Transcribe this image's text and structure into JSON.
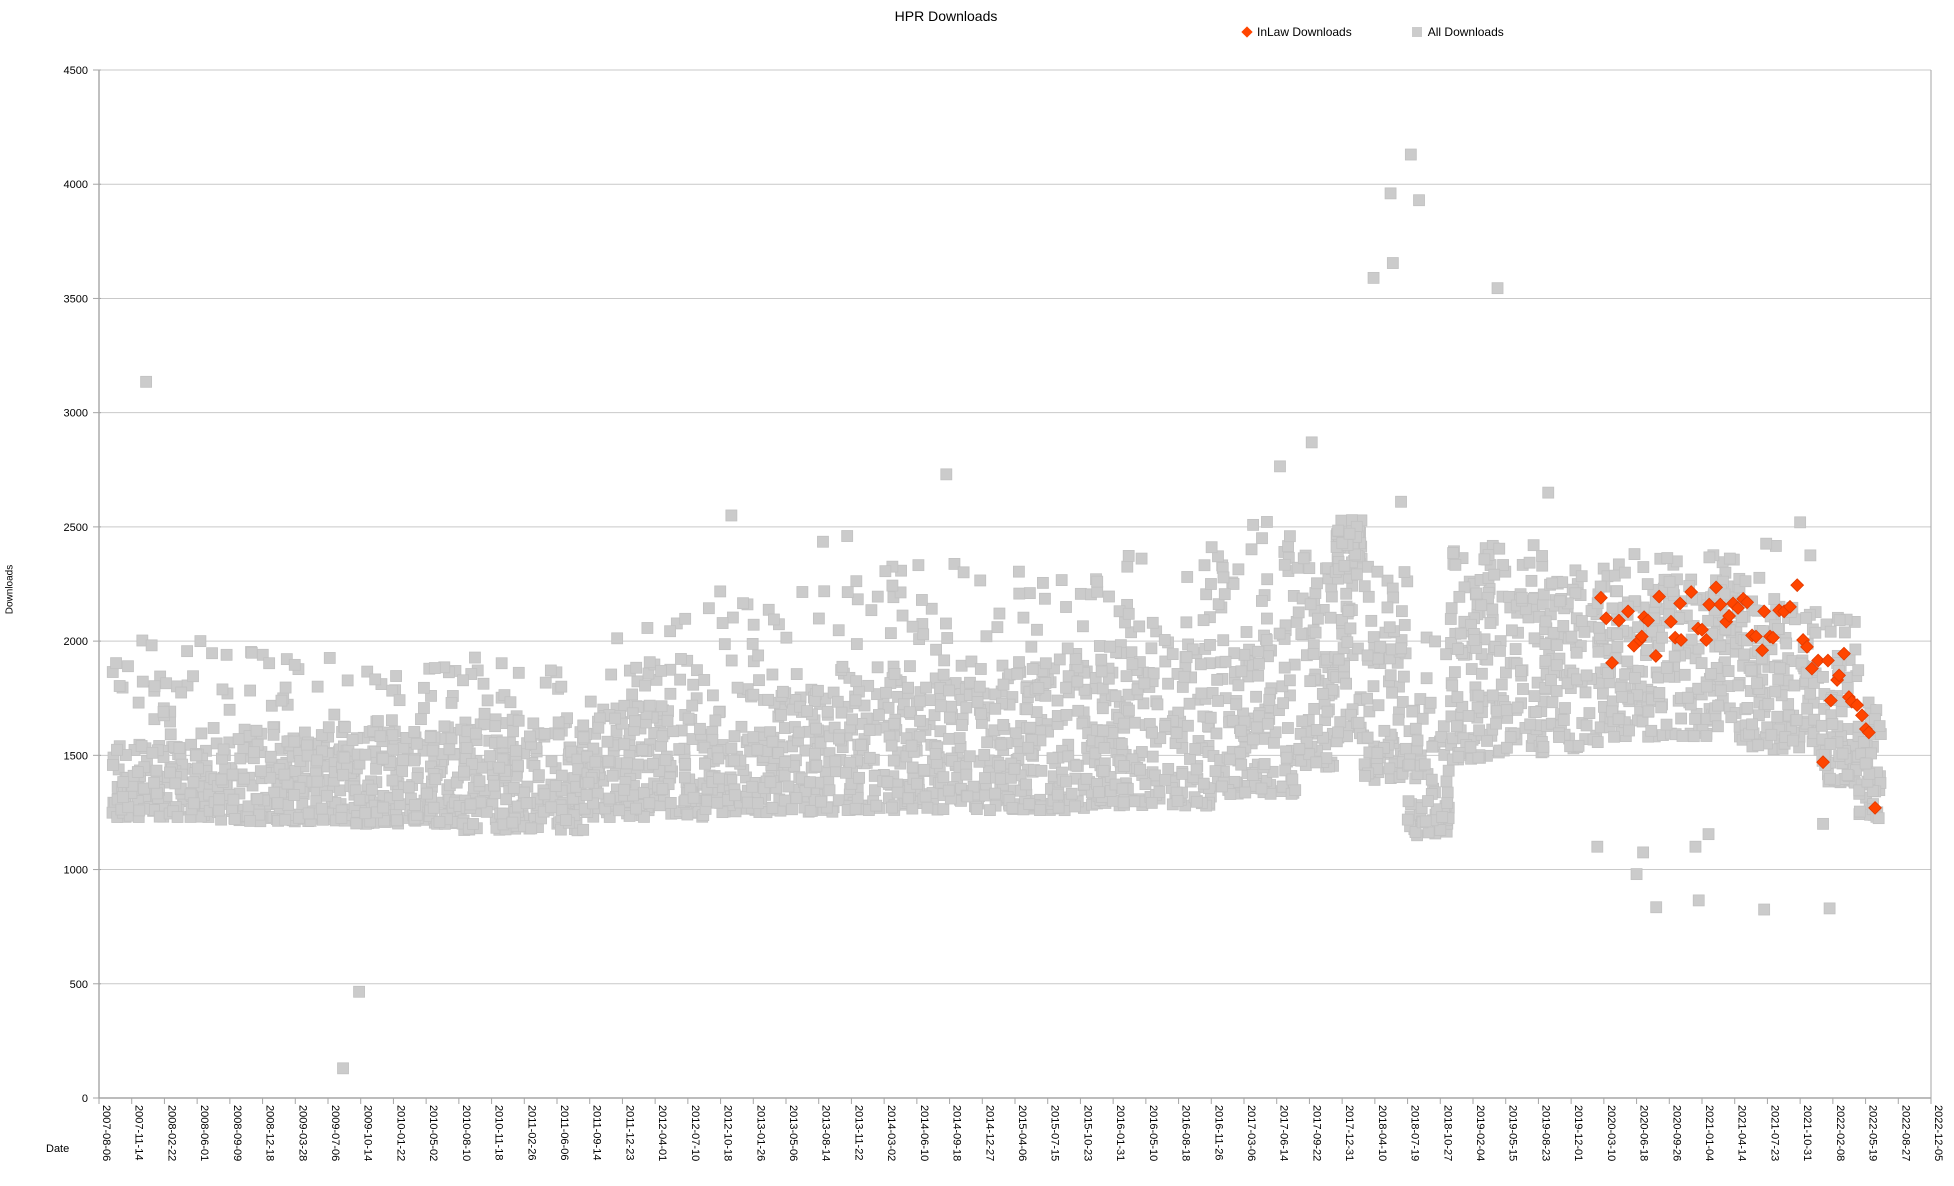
{
  "title": "HPR Downloads",
  "legend": [
    {
      "label": "InLaw Downloads",
      "marker": "diamond",
      "color": "#ff4500"
    },
    {
      "label": "All Downloads",
      "marker": "square",
      "color": "#cccccc"
    }
  ],
  "colors": {
    "background": "#ffffff",
    "gridline": "#c9c9c9",
    "axis": "#a6a6a6",
    "text": "#000000",
    "inlaw_fill": "#ff4500",
    "inlaw_stroke": "#e03a00",
    "all_fill": "#cbcbcb",
    "all_stroke": "#c1c1c1"
  },
  "chart_data": {
    "type": "scatter",
    "title": "HPR Downloads",
    "xlabel": "Date",
    "ylabel": "Downloads",
    "grid": true,
    "legend_position": "top-right",
    "x_axis": {
      "epoch_date": "2007-08-06",
      "tick_step_days": 100,
      "range_days": [
        0,
        5600
      ],
      "tick_labels": [
        "2007-08-06",
        "2007-11-14",
        "2008-02-22",
        "2008-06-01",
        "2008-09-09",
        "2008-12-18",
        "2009-03-28",
        "2009-07-06",
        "2009-10-14",
        "2010-01-22",
        "2010-05-02",
        "2010-08-10",
        "2010-11-18",
        "2011-02-26",
        "2011-06-06",
        "2011-09-14",
        "2011-12-23",
        "2012-04-01",
        "2012-07-10",
        "2012-10-18",
        "2013-01-26",
        "2013-05-06",
        "2013-08-14",
        "2013-11-22",
        "2014-03-02",
        "2014-06-10",
        "2014-09-18",
        "2014-12-27",
        "2015-04-06",
        "2015-07-15",
        "2015-10-23",
        "2016-01-31",
        "2016-05-10",
        "2016-08-18",
        "2016-11-26",
        "2017-03-06",
        "2017-06-14",
        "2017-09-22",
        "2017-12-31",
        "2018-04-10",
        "2018-07-19",
        "2018-10-27",
        "2019-02-04",
        "2019-05-15",
        "2019-08-23",
        "2019-12-01",
        "2020-03-10",
        "2020-06-18",
        "2020-09-26",
        "2021-01-04",
        "2021-04-14",
        "2021-07-23",
        "2021-10-31",
        "2022-02-08",
        "2022-05-19",
        "2022-08-27",
        "2022-12-05"
      ]
    },
    "y_axis": {
      "min": 0,
      "max": 4500,
      "tick_step": 500,
      "tick_labels": [
        "0",
        "500",
        "1000",
        "1500",
        "2000",
        "2500",
        "3000",
        "3500",
        "4000",
        "4500"
      ]
    },
    "series": [
      {
        "name": "All Downloads",
        "marker": "square",
        "color": "#cbcbcb",
        "note": "dense daily cloud; points given as band envelopes (days since epoch, download counts) plus explicit outliers",
        "band_segments": [
          {
            "t0": 40,
            "t1": 350,
            "lo": 1230,
            "hi": 1560,
            "tail": 2010,
            "tf": 0.1,
            "n": 185
          },
          {
            "t0": 350,
            "t1": 740,
            "lo": 1210,
            "hi": 1600,
            "tail": 1960,
            "tf": 0.1,
            "n": 250
          },
          {
            "t0": 740,
            "t1": 1100,
            "lo": 1200,
            "hi": 1630,
            "tail": 1900,
            "tf": 0.1,
            "n": 235
          },
          {
            "t0": 1100,
            "t1": 1480,
            "lo": 1170,
            "hi": 1660,
            "tail": 1950,
            "tf": 0.1,
            "n": 245
          },
          {
            "t0": 1480,
            "t1": 1850,
            "lo": 1230,
            "hi": 1720,
            "tail": 2100,
            "tf": 0.12,
            "n": 240
          },
          {
            "t0": 1850,
            "t1": 2250,
            "lo": 1250,
            "hi": 1790,
            "tail": 2250,
            "tf": 0.12,
            "n": 255
          },
          {
            "t0": 2250,
            "t1": 2650,
            "lo": 1260,
            "hi": 1840,
            "tail": 2350,
            "tf": 0.12,
            "n": 255
          },
          {
            "t0": 2650,
            "t1": 3050,
            "lo": 1260,
            "hi": 1900,
            "tail": 2380,
            "tf": 0.12,
            "n": 255
          },
          {
            "t0": 3050,
            "t1": 3400,
            "lo": 1280,
            "hi": 1990,
            "tail": 2450,
            "tf": 0.13,
            "n": 225
          },
          {
            "t0": 3400,
            "t1": 3660,
            "lo": 1330,
            "hi": 2090,
            "tail": 2530,
            "tf": 0.14,
            "n": 165
          },
          {
            "t0": 3660,
            "t1": 3780,
            "lo": 1450,
            "hi": 2200,
            "tail": 2450,
            "tf": 0.15,
            "n": 80
          },
          {
            "t0": 3780,
            "t1": 3865,
            "lo": 1550,
            "hi": 2160,
            "tail": 2260,
            "tf": 0.1,
            "n": 45
          },
          {
            "t0": 3780,
            "t1": 3865,
            "lo": 2250,
            "hi": 2530,
            "tail": 2530,
            "tf": 0,
            "n": 55,
            "pw": 0.75
          },
          {
            "t0": 3865,
            "t1": 4000,
            "lo": 1380,
            "hi": 2110,
            "tail": 2350,
            "tf": 0.12,
            "n": 85
          },
          {
            "t0": 4000,
            "t1": 4130,
            "lo": 1150,
            "hi": 1760,
            "tail": 2060,
            "tf": 0.1,
            "n": 70
          },
          {
            "t0": 4130,
            "t1": 4420,
            "lo": 1480,
            "hi": 2270,
            "tail": 2420,
            "tf": 0.1,
            "n": 190,
            "pw": 1.1
          },
          {
            "t0": 4420,
            "t1": 4620,
            "lo": 1520,
            "hi": 2210,
            "tail": 2340,
            "tf": 0.1,
            "n": 125,
            "pw": 1.1
          },
          {
            "t0": 4620,
            "t1": 5020,
            "lo": 1580,
            "hi": 2250,
            "tail": 2390,
            "tf": 0.08,
            "n": 250,
            "pw": 1.1
          },
          {
            "t0": 5020,
            "t1": 5260,
            "lo": 1520,
            "hi": 2190,
            "tail": 2430,
            "tf": 0.08,
            "n": 150,
            "pw": 1.1
          },
          {
            "t0": 5260,
            "t1": 5380,
            "lo": 1380,
            "hi": 1990,
            "tail": 2110,
            "tf": 0.06,
            "n": 75,
            "pw": 1.1
          },
          {
            "t0": 5380,
            "t1": 5448,
            "lo": 1230,
            "hi": 1710,
            "tail": 1810,
            "tf": 0.05,
            "n": 42,
            "pw": 1.1
          }
        ],
        "outlier_points": [
          [
            144,
            3135
          ],
          [
            310,
            2000
          ],
          [
            390,
            1940
          ],
          [
            746,
            130
          ],
          [
            795,
            465
          ],
          [
            1933,
            2550
          ],
          [
            2213,
            2435
          ],
          [
            2287,
            2460
          ],
          [
            2590,
            2730
          ],
          [
            3610,
            2765
          ],
          [
            3707,
            2870
          ],
          [
            3896,
            3590
          ],
          [
            3948,
            3960
          ],
          [
            3955,
            3655
          ],
          [
            3980,
            2610
          ],
          [
            4010,
            4130
          ],
          [
            4035,
            3930
          ],
          [
            4275,
            3545
          ],
          [
            4430,
            2650
          ],
          [
            4580,
            1100
          ],
          [
            4700,
            980
          ],
          [
            4720,
            1075
          ],
          [
            4760,
            835
          ],
          [
            4880,
            1100
          ],
          [
            4890,
            865
          ],
          [
            4920,
            1155
          ],
          [
            5090,
            825
          ],
          [
            5200,
            2520
          ],
          [
            5270,
            1200
          ],
          [
            5290,
            830
          ],
          [
            5440,
            1225
          ]
        ]
      },
      {
        "name": "InLaw Downloads",
        "marker": "diamond",
        "color": "#ff4500",
        "points": [
          [
            4591,
            2190
          ],
          [
            4607,
            2100
          ],
          [
            4625,
            1905
          ],
          [
            4646,
            2090
          ],
          [
            4674,
            2130
          ],
          [
            4692,
            1980
          ],
          [
            4710,
            2005
          ],
          [
            4716,
            2020
          ],
          [
            4723,
            2105
          ],
          [
            4735,
            2090
          ],
          [
            4759,
            1935
          ],
          [
            4769,
            2195
          ],
          [
            4805,
            2085
          ],
          [
            4818,
            2015
          ],
          [
            4833,
            2165
          ],
          [
            4836,
            2005
          ],
          [
            4867,
            2215
          ],
          [
            4888,
            2055
          ],
          [
            4900,
            2050
          ],
          [
            4913,
            2005
          ],
          [
            4922,
            2160
          ],
          [
            4943,
            2235
          ],
          [
            4956,
            2160
          ],
          [
            4974,
            2085
          ],
          [
            4983,
            2110
          ],
          [
            4995,
            2165
          ],
          [
            5010,
            2145
          ],
          [
            5026,
            2185
          ],
          [
            5038,
            2170
          ],
          [
            5053,
            2025
          ],
          [
            5065,
            2020
          ],
          [
            5084,
            1960
          ],
          [
            5090,
            2130
          ],
          [
            5108,
            2020
          ],
          [
            5117,
            2015
          ],
          [
            5136,
            2135
          ],
          [
            5151,
            2130
          ],
          [
            5169,
            2150
          ],
          [
            5191,
            2245
          ],
          [
            5209,
            2005
          ],
          [
            5221,
            1975
          ],
          [
            5236,
            1880
          ],
          [
            5255,
            1915
          ],
          [
            5270,
            1470
          ],
          [
            5285,
            1915
          ],
          [
            5294,
            1740
          ],
          [
            5313,
            1830
          ],
          [
            5319,
            1850
          ],
          [
            5334,
            1945
          ],
          [
            5349,
            1755
          ],
          [
            5358,
            1735
          ],
          [
            5374,
            1720
          ],
          [
            5389,
            1675
          ],
          [
            5401,
            1615
          ],
          [
            5410,
            1600
          ],
          [
            5429,
            1270
          ]
        ]
      }
    ]
  }
}
